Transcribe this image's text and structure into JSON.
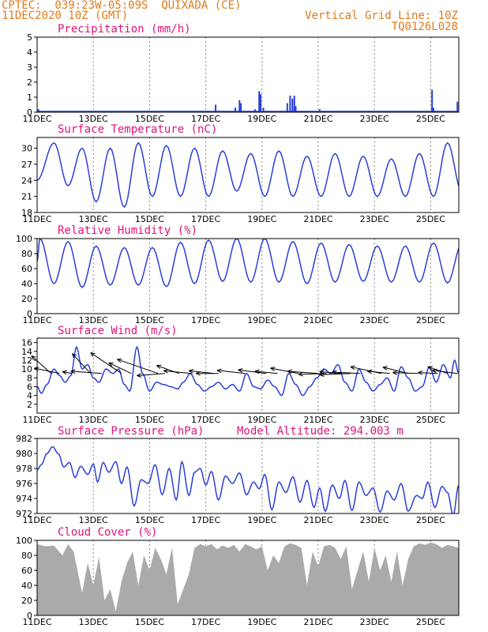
{
  "header": {
    "line1": "CPTEC:  039:23W-05:09S  QUIXADA (CE)",
    "line2": "11DEC2020 10Z (GMT)",
    "vertical_grid_label": "Vertical Grid Line: 10Z",
    "code": "TQ0126L028"
  },
  "x_labels": [
    "11DEC",
    "13DEC",
    "15DEC",
    "17DEC",
    "19DEC",
    "21DEC",
    "23DEC",
    "25DEC"
  ],
  "colors": {
    "title": "#e0137a",
    "header": "#e07b1a",
    "series": "#2b3fd9",
    "cloud": "#aaaaaa",
    "wind_arrow": "#000000"
  },
  "chart_data": [
    {
      "type": "bar",
      "title": "Precipitation (mm/h)",
      "ylim": [
        0,
        5
      ],
      "yticks": [
        0,
        1,
        2,
        3,
        4,
        5
      ],
      "x_days": [
        0,
        15
      ],
      "bars": [
        {
          "x": 0.05,
          "value": 0.2
        },
        {
          "x": 6.35,
          "value": 0.5
        },
        {
          "x": 7.05,
          "value": 0.3
        },
        {
          "x": 7.2,
          "value": 0.8
        },
        {
          "x": 7.25,
          "value": 0.6
        },
        {
          "x": 7.75,
          "value": 0.2
        },
        {
          "x": 7.9,
          "value": 1.4
        },
        {
          "x": 7.95,
          "value": 1.2
        },
        {
          "x": 8.05,
          "value": 0.3
        },
        {
          "x": 8.9,
          "value": 0.6
        },
        {
          "x": 9.0,
          "value": 1.1
        },
        {
          "x": 9.08,
          "value": 0.9
        },
        {
          "x": 9.15,
          "value": 1.1
        },
        {
          "x": 9.2,
          "value": 0.4
        },
        {
          "x": 10.05,
          "value": 0.2
        },
        {
          "x": 14.05,
          "value": 1.5
        },
        {
          "x": 14.1,
          "value": 0.3
        },
        {
          "x": 14.95,
          "value": 0.7
        }
      ]
    },
    {
      "type": "line",
      "title": "Surface Temperature (nC)",
      "ylim": [
        18,
        32
      ],
      "yticks": [
        18,
        21,
        24,
        27,
        30
      ],
      "x_days": [
        0,
        15
      ],
      "peak_time": 0.6,
      "highs": [
        31.0,
        30.0,
        30.0,
        31.0,
        30.5,
        30.0,
        29.5,
        29.0,
        29.5,
        28.5,
        29.0,
        28.5,
        28.0,
        29.0,
        31.0,
        30.0
      ],
      "lows": [
        23.0,
        20.0,
        19.0,
        21.0,
        21.0,
        21.0,
        22.0,
        21.0,
        21.0,
        21.0,
        21.0,
        21.0,
        21.0,
        21.0,
        22.0,
        21.0
      ],
      "start_value": 24.0
    },
    {
      "type": "line",
      "title": "Relative Humidity (%)",
      "ylim": [
        0,
        100
      ],
      "yticks": [
        0,
        20,
        40,
        60,
        80,
        100
      ],
      "x_days": [
        0,
        15
      ],
      "peak_time": 0.1,
      "highs": [
        100,
        96,
        90,
        88,
        88,
        95,
        98,
        100,
        100,
        96,
        94,
        92,
        90,
        90,
        94,
        92
      ],
      "lows": [
        40,
        35,
        38,
        38,
        36,
        40,
        43,
        42,
        42,
        40,
        42,
        43,
        42,
        42,
        41,
        40
      ],
      "start_value": 70
    },
    {
      "type": "line",
      "title": "Surface Wind (m/s)",
      "ylim": [
        0,
        17
      ],
      "yticks": [
        2,
        4,
        6,
        8,
        10,
        12,
        14,
        16
      ],
      "x_days": [
        0,
        15
      ],
      "points": [
        [
          0.0,
          6.0
        ],
        [
          0.15,
          4.5
        ],
        [
          0.35,
          6.5
        ],
        [
          0.6,
          10.0
        ],
        [
          0.8,
          8.5
        ],
        [
          1.0,
          7.0
        ],
        [
          1.2,
          8.5
        ],
        [
          1.4,
          15.0
        ],
        [
          1.6,
          10.0
        ],
        [
          1.8,
          11.0
        ],
        [
          2.0,
          8.0
        ],
        [
          2.2,
          7.0
        ],
        [
          2.45,
          10.0
        ],
        [
          2.7,
          9.0
        ],
        [
          2.9,
          10.0
        ],
        [
          3.1,
          6.5
        ],
        [
          3.3,
          5.0
        ],
        [
          3.55,
          15.0
        ],
        [
          3.75,
          9.0
        ],
        [
          4.0,
          5.0
        ],
        [
          4.25,
          7.0
        ],
        [
          4.5,
          6.5
        ],
        [
          4.75,
          6.0
        ],
        [
          5.0,
          5.5
        ],
        [
          5.2,
          7.0
        ],
        [
          5.45,
          9.0
        ],
        [
          5.7,
          6.5
        ],
        [
          5.95,
          5.0
        ],
        [
          6.2,
          6.0
        ],
        [
          6.45,
          7.0
        ],
        [
          6.7,
          5.5
        ],
        [
          6.95,
          6.5
        ],
        [
          7.2,
          5.0
        ],
        [
          7.45,
          9.0
        ],
        [
          7.7,
          6.0
        ],
        [
          7.95,
          5.5
        ],
        [
          8.2,
          7.5
        ],
        [
          8.45,
          6.0
        ],
        [
          8.7,
          4.0
        ],
        [
          8.95,
          9.0
        ],
        [
          9.2,
          6.5
        ],
        [
          9.45,
          4.0
        ],
        [
          9.7,
          6.0
        ],
        [
          9.95,
          8.0
        ],
        [
          10.2,
          10.0
        ],
        [
          10.45,
          9.0
        ],
        [
          10.7,
          11.0
        ],
        [
          10.95,
          7.0
        ],
        [
          11.2,
          5.0
        ],
        [
          11.45,
          10.0
        ],
        [
          11.7,
          7.0
        ],
        [
          11.95,
          5.0
        ],
        [
          12.2,
          6.5
        ],
        [
          12.45,
          8.0
        ],
        [
          12.7,
          5.0
        ],
        [
          12.95,
          10.5
        ],
        [
          13.2,
          8.0
        ],
        [
          13.45,
          5.0
        ],
        [
          13.7,
          6.0
        ],
        [
          13.95,
          10.5
        ],
        [
          14.2,
          7.0
        ],
        [
          14.45,
          11.0
        ],
        [
          14.7,
          8.0
        ],
        [
          14.85,
          12.0
        ],
        [
          15.0,
          9.0
        ]
      ],
      "vectors": [
        {
          "x": 0.5,
          "dx": -0.7,
          "dy": 4.0
        },
        {
          "x": 0.8,
          "dx": -0.9,
          "dy": 1.2
        },
        {
          "x": 1.25,
          "dx": -0.35,
          "dy": 0.4
        },
        {
          "x": 1.9,
          "dx": -0.65,
          "dy": 4.5
        },
        {
          "x": 2.3,
          "dx": -1.1,
          "dy": 0.5
        },
        {
          "x": 3.0,
          "dx": -1.1,
          "dy": 4.7
        },
        {
          "x": 3.35,
          "dx": -0.8,
          "dy": 2.4
        },
        {
          "x": 4.3,
          "dx": -1.45,
          "dy": 3.2
        },
        {
          "x": 4.55,
          "dx": -1.0,
          "dy": -0.5
        },
        {
          "x": 5.05,
          "dx": -0.8,
          "dy": 1.8
        },
        {
          "x": 5.5,
          "dx": -1.0,
          "dy": 0.6
        },
        {
          "x": 6.3,
          "dx": -0.9,
          "dy": 0.6
        },
        {
          "x": 6.45,
          "dx": -0.8,
          "dy": 0.0
        },
        {
          "x": 7.4,
          "dx": -1.0,
          "dy": 0.7
        },
        {
          "x": 8.15,
          "dx": -1.0,
          "dy": 0.8
        },
        {
          "x": 8.55,
          "dx": -0.8,
          "dy": 0.5
        },
        {
          "x": 9.3,
          "dx": -1.0,
          "dy": 1.2
        },
        {
          "x": 10.0,
          "dx": -1.1,
          "dy": 0.5
        },
        {
          "x": 10.3,
          "dx": -1.0,
          "dy": -0.2
        },
        {
          "x": 10.85,
          "dx": -0.8,
          "dy": 0.4
        },
        {
          "x": 11.15,
          "dx": -1.1,
          "dy": -0.3
        },
        {
          "x": 11.5,
          "dx": -1.0,
          "dy": 0.3
        },
        {
          "x": 12.25,
          "dx": -1.1,
          "dy": 1.5
        },
        {
          "x": 12.55,
          "dx": -0.8,
          "dy": 0.5
        },
        {
          "x": 13.2,
          "dx": -0.9,
          "dy": 1.4
        },
        {
          "x": 13.55,
          "dx": -0.9,
          "dy": 0.2
        },
        {
          "x": 14.25,
          "dx": -0.7,
          "dy": 0.2
        },
        {
          "x": 14.6,
          "dx": -0.7,
          "dy": 1.5
        },
        {
          "x": 14.95,
          "dx": -0.9,
          "dy": 0.7
        }
      ]
    },
    {
      "type": "line",
      "title": "Surface Pressure (hPa)",
      "annotation": "Model Altitude: 294.003 m",
      "ylim": [
        972,
        982
      ],
      "yticks": [
        972,
        974,
        976,
        978,
        980,
        982
      ],
      "x_days": [
        0,
        15
      ],
      "points": [
        [
          0.0,
          977.8
        ],
        [
          0.15,
          978.5
        ],
        [
          0.35,
          980.0
        ],
        [
          0.55,
          980.9
        ],
        [
          0.75,
          980.0
        ],
        [
          0.95,
          978.2
        ],
        [
          1.15,
          978.8
        ],
        [
          1.35,
          976.8
        ],
        [
          1.55,
          978.3
        ],
        [
          1.8,
          977.2
        ],
        [
          2.0,
          978.6
        ],
        [
          2.15,
          976.2
        ],
        [
          2.35,
          978.8
        ],
        [
          2.55,
          977.5
        ],
        [
          2.8,
          978.9
        ],
        [
          3.0,
          976.0
        ],
        [
          3.2,
          978.2
        ],
        [
          3.45,
          973.0
        ],
        [
          3.7,
          976.5
        ],
        [
          3.95,
          976.0
        ],
        [
          4.2,
          978.5
        ],
        [
          4.45,
          974.5
        ],
        [
          4.7,
          978.0
        ],
        [
          4.95,
          973.8
        ],
        [
          5.15,
          978.9
        ],
        [
          5.4,
          974.4
        ],
        [
          5.6,
          977.5
        ],
        [
          5.8,
          978.0
        ],
        [
          6.0,
          975.8
        ],
        [
          6.2,
          977.6
        ],
        [
          6.45,
          973.8
        ],
        [
          6.7,
          977.0
        ],
        [
          6.95,
          976.0
        ],
        [
          7.2,
          977.4
        ],
        [
          7.45,
          974.5
        ],
        [
          7.7,
          976.2
        ],
        [
          7.9,
          975.3
        ],
        [
          8.1,
          977.2
        ],
        [
          8.35,
          972.5
        ],
        [
          8.6,
          976.2
        ],
        [
          8.85,
          974.8
        ],
        [
          9.1,
          976.9
        ],
        [
          9.35,
          973.5
        ],
        [
          9.6,
          976.4
        ],
        [
          9.85,
          972.8
        ],
        [
          10.05,
          975.4
        ],
        [
          10.25,
          972.3
        ],
        [
          10.5,
          975.8
        ],
        [
          10.75,
          974.0
        ],
        [
          10.95,
          976.4
        ],
        [
          11.2,
          972.4
        ],
        [
          11.45,
          976.2
        ],
        [
          11.7,
          974.4
        ],
        [
          11.95,
          975.4
        ],
        [
          12.2,
          972.2
        ],
        [
          12.45,
          975.0
        ],
        [
          12.7,
          973.8
        ],
        [
          12.95,
          976.0
        ],
        [
          13.2,
          972.3
        ],
        [
          13.5,
          974.4
        ],
        [
          13.7,
          974.0
        ],
        [
          13.9,
          976.2
        ],
        [
          14.15,
          972.8
        ],
        [
          14.4,
          975.6
        ],
        [
          14.6,
          974.8
        ],
        [
          14.8,
          971.8
        ],
        [
          15.0,
          975.8
        ]
      ]
    },
    {
      "type": "area",
      "title": "Cloud Cover (%)",
      "ylim": [
        0,
        100
      ],
      "yticks": [
        0,
        20,
        40,
        60,
        80,
        100
      ],
      "x_days": [
        0,
        15
      ],
      "points": [
        [
          0.0,
          95
        ],
        [
          0.3,
          92
        ],
        [
          0.6,
          93
        ],
        [
          0.9,
          80
        ],
        [
          1.1,
          95
        ],
        [
          1.3,
          85
        ],
        [
          1.6,
          30
        ],
        [
          1.8,
          70
        ],
        [
          2.0,
          40
        ],
        [
          2.2,
          78
        ],
        [
          2.4,
          20
        ],
        [
          2.6,
          35
        ],
        [
          2.8,
          5
        ],
        [
          3.0,
          45
        ],
        [
          3.2,
          70
        ],
        [
          3.4,
          85
        ],
        [
          3.6,
          40
        ],
        [
          3.8,
          80
        ],
        [
          4.0,
          60
        ],
        [
          4.2,
          90
        ],
        [
          4.4,
          75
        ],
        [
          4.6,
          55
        ],
        [
          4.8,
          90
        ],
        [
          5.0,
          15
        ],
        [
          5.2,
          35
        ],
        [
          5.4,
          55
        ],
        [
          5.6,
          90
        ],
        [
          5.8,
          95
        ],
        [
          6.0,
          92
        ],
        [
          6.2,
          95
        ],
        [
          6.4,
          88
        ],
        [
          6.6,
          93
        ],
        [
          6.8,
          90
        ],
        [
          7.0,
          94
        ],
        [
          7.2,
          85
        ],
        [
          7.4,
          95
        ],
        [
          7.6,
          92
        ],
        [
          7.8,
          88
        ],
        [
          8.0,
          92
        ],
        [
          8.2,
          60
        ],
        [
          8.4,
          80
        ],
        [
          8.6,
          70
        ],
        [
          8.8,
          92
        ],
        [
          9.0,
          96
        ],
        [
          9.2,
          94
        ],
        [
          9.4,
          90
        ],
        [
          9.6,
          40
        ],
        [
          9.8,
          85
        ],
        [
          10.0,
          65
        ],
        [
          10.2,
          92
        ],
        [
          10.4,
          94
        ],
        [
          10.6,
          90
        ],
        [
          10.8,
          75
        ],
        [
          11.0,
          92
        ],
        [
          11.2,
          35
        ],
        [
          11.4,
          60
        ],
        [
          11.6,
          85
        ],
        [
          11.8,
          45
        ],
        [
          12.0,
          90
        ],
        [
          12.2,
          60
        ],
        [
          12.4,
          80
        ],
        [
          12.6,
          45
        ],
        [
          12.8,
          85
        ],
        [
          13.0,
          40
        ],
        [
          13.2,
          75
        ],
        [
          13.4,
          92
        ],
        [
          13.6,
          96
        ],
        [
          13.8,
          94
        ],
        [
          14.0,
          97
        ],
        [
          14.2,
          95
        ],
        [
          14.4,
          90
        ],
        [
          14.6,
          94
        ],
        [
          14.8,
          92
        ],
        [
          15.0,
          90
        ]
      ]
    }
  ]
}
